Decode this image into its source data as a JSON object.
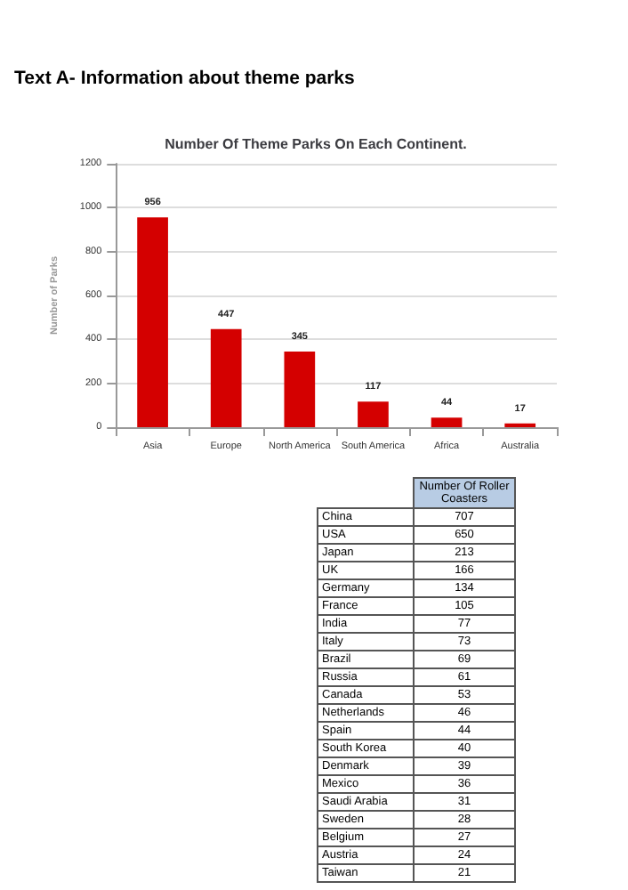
{
  "chart_data": [
    {
      "type": "bar",
      "title": "Text A- Information about theme parks",
      "subtitle": "Number Of Theme Parks On Each Continent.",
      "ylabel": "Number of Parks",
      "categories": [
        "Asia",
        "Europe",
        "North America",
        "South America",
        "Africa",
        "Australia"
      ],
      "values": [
        956,
        447,
        345,
        117,
        44,
        17
      ],
      "color": "#d40000",
      "ylim": [
        0,
        1200
      ],
      "yticks": [
        0,
        200,
        400,
        600,
        800,
        1000,
        1200
      ],
      "grid": "y",
      "data_labels": true
    },
    {
      "type": "other",
      "title": "Number Of Roller Coasters",
      "color": "#b8cce4",
      "categories": [
        "China",
        "USA",
        "Japan",
        "UK",
        "Germany",
        "France",
        "India",
        "Italy",
        "Brazil",
        "Russia",
        "Canada",
        "Netherlands",
        "Spain",
        "South Korea",
        "Denmark",
        "Mexico",
        "Saudi Arabia",
        "Sweden",
        "Belgium",
        "Austria",
        "Taiwan"
      ],
      "values": [
        707,
        650,
        213,
        166,
        134,
        105,
        77,
        73,
        69,
        61,
        53,
        46,
        44,
        40,
        39,
        36,
        31,
        28,
        27,
        24,
        21
      ],
      "data_labels": true
    }
  ]
}
